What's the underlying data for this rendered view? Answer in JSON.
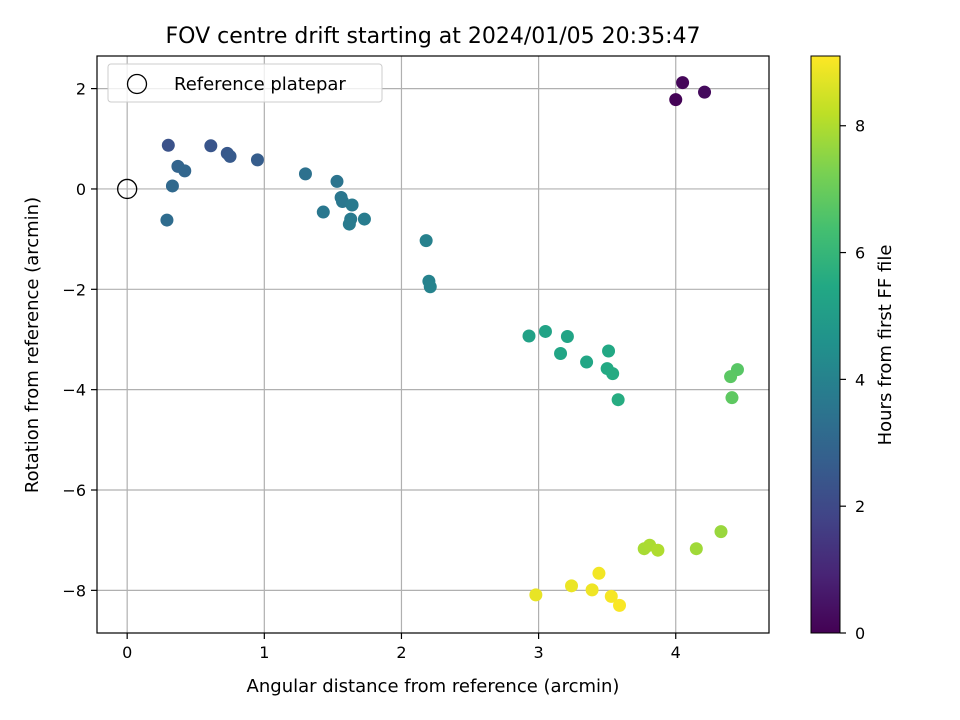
{
  "chart_data": {
    "type": "scatter",
    "title": "FOV centre drift starting at 2024/01/05 20:35:47",
    "xlabel": "Angular distance from reference (arcmin)",
    "ylabel": "Rotation from reference (arcmin)",
    "xlim": [
      -0.22,
      4.68
    ],
    "ylim": [
      -8.85,
      2.65
    ],
    "xticks": [
      0,
      1,
      2,
      3,
      4
    ],
    "yticks": [
      2,
      0,
      -2,
      -4,
      -6,
      -8
    ],
    "grid": true,
    "legend": {
      "position": "top-left",
      "label": "Reference platepar"
    },
    "reference_point": {
      "x": 0,
      "y": 0
    },
    "colorbar": {
      "label": "Hours from first FF file",
      "range": [
        0,
        9.1
      ],
      "ticks": [
        0,
        2,
        4,
        6,
        8
      ],
      "colormap": "viridis"
    },
    "points": [
      {
        "x": 4.0,
        "y": 1.78,
        "c": 0.05
      },
      {
        "x": 4.05,
        "y": 2.12,
        "c": 0.15
      },
      {
        "x": 4.21,
        "y": 1.93,
        "c": 0.25
      },
      {
        "x": 0.3,
        "y": 0.87,
        "c": 2.3
      },
      {
        "x": 0.61,
        "y": 0.86,
        "c": 2.4
      },
      {
        "x": 0.73,
        "y": 0.71,
        "c": 2.5
      },
      {
        "x": 0.75,
        "y": 0.65,
        "c": 2.55
      },
      {
        "x": 0.95,
        "y": 0.58,
        "c": 2.65
      },
      {
        "x": 0.37,
        "y": 0.45,
        "c": 2.9
      },
      {
        "x": 0.42,
        "y": 0.36,
        "c": 3.0
      },
      {
        "x": 0.33,
        "y": 0.06,
        "c": 3.1
      },
      {
        "x": 0.29,
        "y": -0.62,
        "c": 3.2
      },
      {
        "x": 1.3,
        "y": 0.3,
        "c": 3.4
      },
      {
        "x": 1.53,
        "y": 0.15,
        "c": 3.5
      },
      {
        "x": 1.56,
        "y": -0.17,
        "c": 3.55
      },
      {
        "x": 1.57,
        "y": -0.25,
        "c": 3.6
      },
      {
        "x": 1.43,
        "y": -0.46,
        "c": 3.6
      },
      {
        "x": 1.64,
        "y": -0.32,
        "c": 3.7
      },
      {
        "x": 1.63,
        "y": -0.6,
        "c": 3.7
      },
      {
        "x": 1.62,
        "y": -0.7,
        "c": 3.75
      },
      {
        "x": 1.73,
        "y": -0.6,
        "c": 3.8
      },
      {
        "x": 2.18,
        "y": -1.03,
        "c": 3.95
      },
      {
        "x": 2.2,
        "y": -1.84,
        "c": 4.0
      },
      {
        "x": 2.21,
        "y": -1.95,
        "c": 4.05
      },
      {
        "x": 2.93,
        "y": -2.93,
        "c": 5.2
      },
      {
        "x": 3.05,
        "y": -2.84,
        "c": 5.25
      },
      {
        "x": 3.21,
        "y": -2.94,
        "c": 5.3
      },
      {
        "x": 3.16,
        "y": -3.28,
        "c": 5.35
      },
      {
        "x": 3.35,
        "y": -3.45,
        "c": 5.4
      },
      {
        "x": 3.51,
        "y": -3.23,
        "c": 5.45
      },
      {
        "x": 3.5,
        "y": -3.58,
        "c": 5.5
      },
      {
        "x": 3.54,
        "y": -3.68,
        "c": 5.55
      },
      {
        "x": 3.58,
        "y": -4.2,
        "c": 5.6
      },
      {
        "x": 4.45,
        "y": -3.6,
        "c": 6.7
      },
      {
        "x": 4.4,
        "y": -3.74,
        "c": 6.75
      },
      {
        "x": 4.41,
        "y": -4.16,
        "c": 6.8
      },
      {
        "x": 4.33,
        "y": -6.83,
        "c": 7.7
      },
      {
        "x": 4.15,
        "y": -7.17,
        "c": 7.8
      },
      {
        "x": 3.77,
        "y": -7.17,
        "c": 7.9
      },
      {
        "x": 3.81,
        "y": -7.1,
        "c": 7.95
      },
      {
        "x": 3.87,
        "y": -7.2,
        "c": 8.0
      },
      {
        "x": 2.98,
        "y": -8.09,
        "c": 8.8
      },
      {
        "x": 3.24,
        "y": -7.91,
        "c": 8.85
      },
      {
        "x": 3.39,
        "y": -7.99,
        "c": 8.9
      },
      {
        "x": 3.44,
        "y": -7.66,
        "c": 8.95
      },
      {
        "x": 3.53,
        "y": -8.12,
        "c": 9.0
      },
      {
        "x": 3.59,
        "y": -8.3,
        "c": 9.05
      }
    ]
  }
}
